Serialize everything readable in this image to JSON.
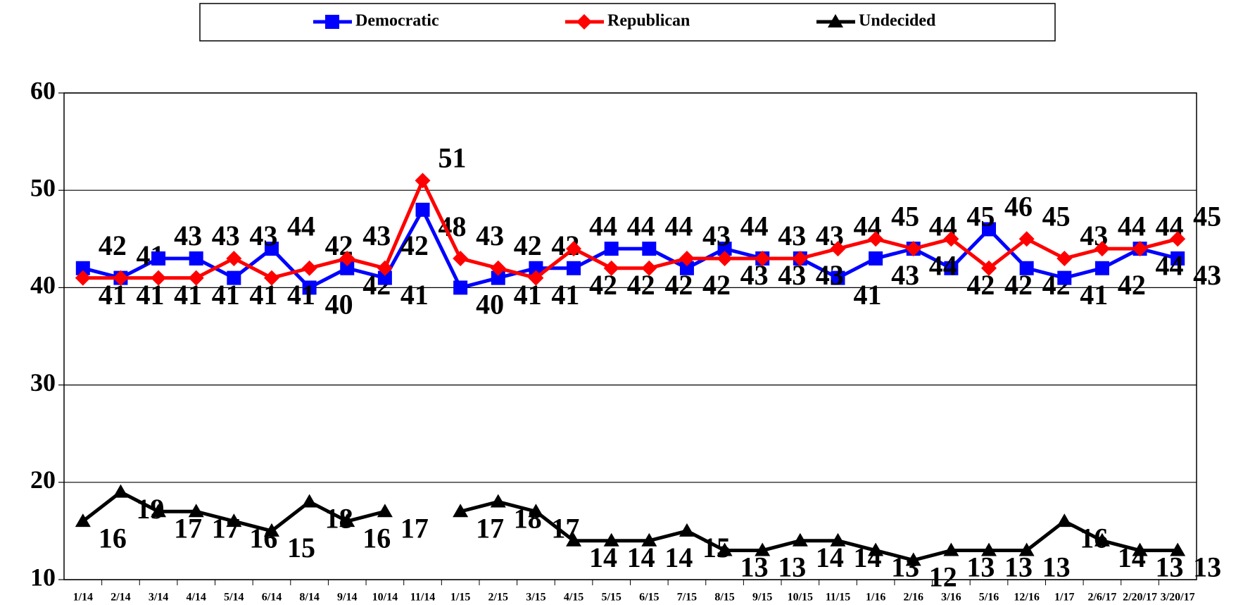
{
  "chart_data": {
    "type": "line",
    "categories": [
      "1/14",
      "2/14",
      "3/14",
      "4/14",
      "5/14",
      "6/14",
      "8/14",
      "9/14",
      "10/14",
      "11/14",
      "1/15",
      "2/15",
      "3/15",
      "4/15",
      "5/15",
      "6/15",
      "7/15",
      "8/15",
      "9/15",
      "10/15",
      "11/15",
      "1/16",
      "2/16",
      "3/16",
      "5/16",
      "12/16",
      "1/17",
      "2/6/17",
      "2/20/17",
      "3/20/17"
    ],
    "series": [
      {
        "name": "Democratic",
        "color": "#0000ff",
        "marker": "square",
        "values": [
          42,
          41,
          43,
          43,
          41,
          44,
          40,
          42,
          41,
          48,
          40,
          41,
          42,
          42,
          44,
          44,
          42,
          44,
          43,
          43,
          41,
          43,
          44,
          42,
          46,
          42,
          41,
          42,
          44,
          43
        ]
      },
      {
        "name": "Republican",
        "color": "#ff0000",
        "marker": "diamond",
        "values": [
          41,
          41,
          41,
          41,
          43,
          41,
          42,
          43,
          42,
          51,
          43,
          42,
          41,
          44,
          42,
          42,
          43,
          43,
          43,
          43,
          44,
          45,
          44,
          45,
          42,
          45,
          43,
          44,
          44,
          45
        ]
      },
      {
        "name": "Undecided",
        "color": "#000000",
        "marker": "triangle",
        "values": [
          16,
          19,
          17,
          17,
          16,
          15,
          18,
          16,
          17,
          null,
          17,
          18,
          17,
          14,
          14,
          14,
          15,
          13,
          13,
          14,
          14,
          13,
          12,
          13,
          13,
          13,
          16,
          14,
          13,
          13
        ]
      }
    ],
    "ylim": [
      10,
      60
    ],
    "yticks": [
      10,
      20,
      30,
      40,
      50,
      60
    ],
    "grid": true,
    "legend": "top"
  }
}
